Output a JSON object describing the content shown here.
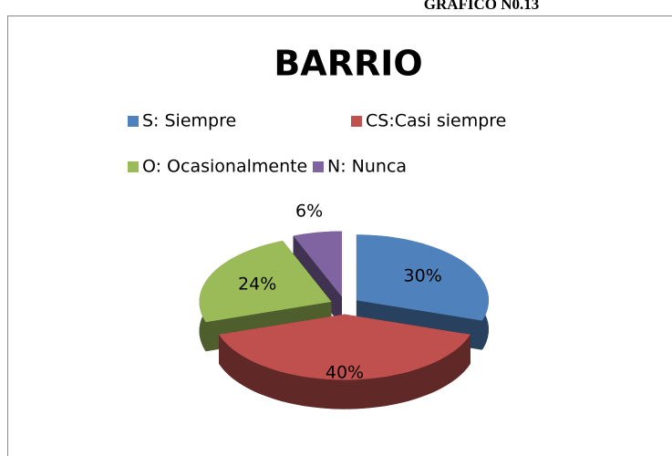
{
  "heading": "GRAFICO N0.13",
  "chart_data": {
    "type": "pie3d",
    "title": "BARRIO",
    "categories": [
      "S:   Siempre",
      "CS:Casi siempre",
      "O:   Ocasionalmente",
      "N:   Nunca"
    ],
    "values": [
      30,
      40,
      24,
      6
    ],
    "value_labels": [
      "30%",
      "40%",
      "24%",
      "6%"
    ],
    "colors": [
      "#4f81bd",
      "#c0504d",
      "#9bbb59",
      "#8064a2"
    ],
    "legend": "top"
  }
}
